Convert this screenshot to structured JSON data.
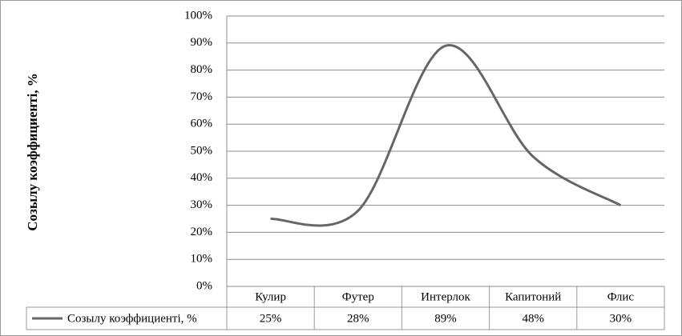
{
  "chart_data": {
    "type": "line",
    "y_axis_label": "Созылу коэффициенті, %",
    "categories": [
      "Кулир",
      "Футер",
      "Интерлок",
      "Капитоний",
      "Флис"
    ],
    "series": [
      {
        "name": "Созылу коэффициенті, %",
        "color": "#666666",
        "values": [
          25,
          28,
          89,
          48,
          30
        ],
        "value_labels": [
          "25%",
          "28%",
          "89%",
          "48%",
          "30%"
        ]
      }
    ],
    "ylim": [
      0,
      100
    ],
    "yticks": [
      {
        "value": 0,
        "label": "0%"
      },
      {
        "value": 10,
        "label": "10%"
      },
      {
        "value": 20,
        "label": "20%"
      },
      {
        "value": 30,
        "label": "30%"
      },
      {
        "value": 40,
        "label": "40%"
      },
      {
        "value": 50,
        "label": "50%"
      },
      {
        "value": 60,
        "label": "60%"
      },
      {
        "value": 70,
        "label": "70%"
      },
      {
        "value": 80,
        "label": "80%"
      },
      {
        "value": 90,
        "label": "90%"
      },
      {
        "value": 100,
        "label": "100%"
      }
    ],
    "grid": true,
    "smooth": true,
    "data_table": true
  }
}
